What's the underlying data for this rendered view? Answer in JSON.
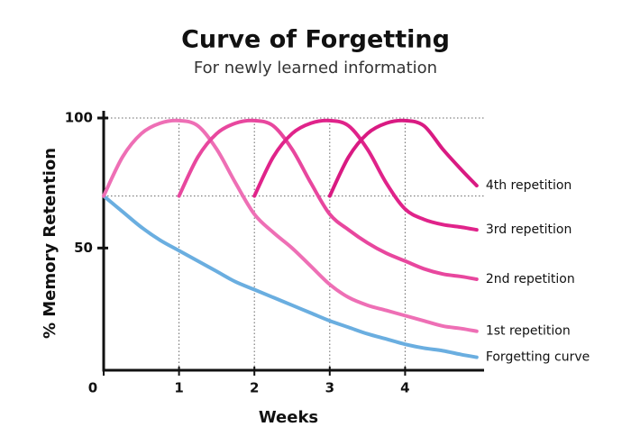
{
  "chart_data": {
    "type": "line",
    "title": "Curve of Forgetting",
    "subtitle": "For newly learned information",
    "x_label": "Weeks",
    "y_label": "% Memory Retention",
    "x": [
      0,
      0.25,
      0.5,
      0.75,
      1,
      1.25,
      1.5,
      1.75,
      2,
      2.25,
      2.5,
      2.75,
      3,
      3.25,
      3.5,
      3.75,
      4,
      4.25,
      4.5,
      4.75,
      4.95
    ],
    "series": [
      {
        "name": "Forgetting curve",
        "color": "#6aaee0",
        "values": [
          70,
          64,
          58,
          53,
          49,
          45,
          41,
          37,
          34,
          31,
          28,
          25,
          22,
          19.5,
          17,
          15,
          13,
          11.5,
          10.5,
          9,
          8
        ]
      },
      {
        "name": "1st repetition",
        "color": "#ee6fb5",
        "values": [
          70,
          85,
          94,
          98,
          99,
          97,
          88,
          75,
          63,
          56,
          50,
          43,
          36,
          31,
          28,
          26,
          24,
          22,
          20,
          19,
          18
        ]
      },
      {
        "name": "2nd repetition",
        "color": "#e8479e",
        "values": [
          null,
          null,
          null,
          null,
          70,
          85,
          94,
          98,
          99,
          97,
          88,
          75,
          63,
          57,
          52,
          48,
          45,
          42,
          40,
          39,
          38
        ]
      },
      {
        "name": "3rd repetition",
        "color": "#e0238a",
        "values": [
          null,
          null,
          null,
          null,
          null,
          null,
          null,
          null,
          70,
          85,
          94,
          98,
          99,
          97,
          88,
          75,
          65,
          61,
          59,
          58,
          57
        ]
      },
      {
        "name": "4th repetition",
        "color": "#d91a82",
        "values": [
          null,
          null,
          null,
          null,
          null,
          null,
          null,
          null,
          null,
          null,
          null,
          null,
          70,
          85,
          94,
          98,
          99,
          97,
          88,
          80,
          74
        ]
      }
    ],
    "xlim": [
      0,
      5
    ],
    "ylim": [
      3,
      100
    ],
    "xticks": [
      0,
      1,
      2,
      3,
      4
    ],
    "yticks": [
      50,
      100
    ],
    "reference_line": 70
  }
}
